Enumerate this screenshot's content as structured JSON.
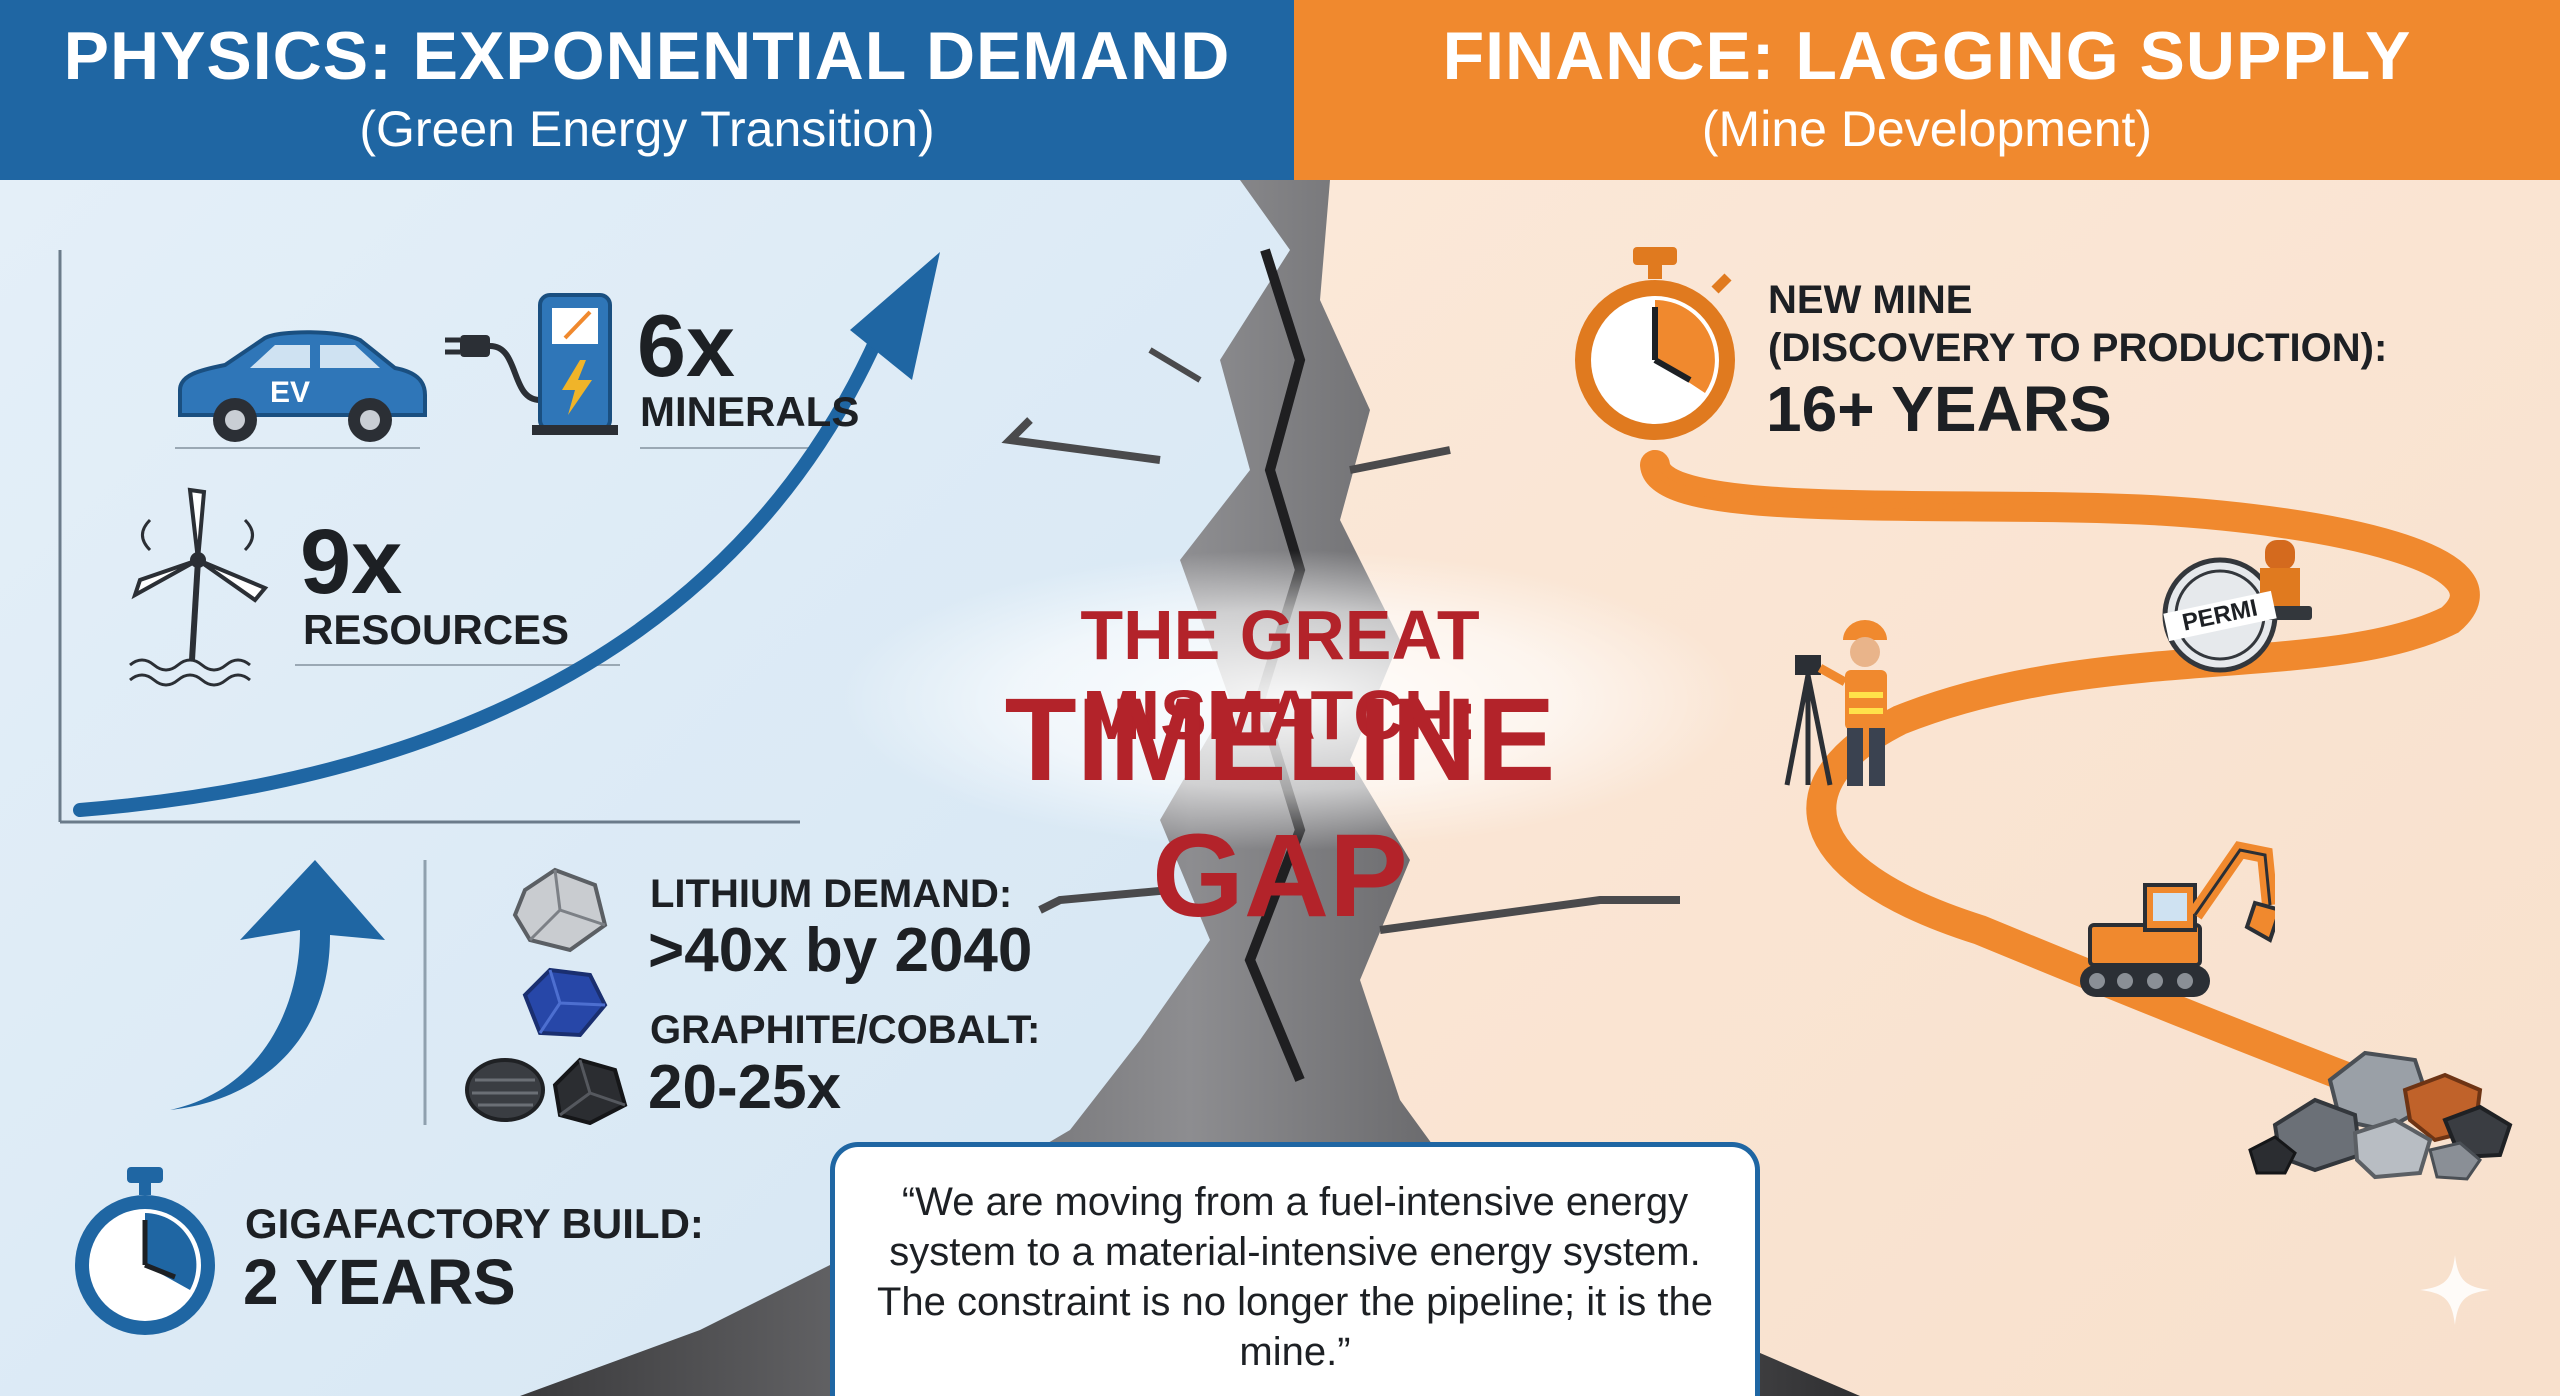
{
  "left_header": {
    "title": "PHYSICS: EXPONENTIAL DEMAND",
    "subtitle": "(Green Energy Transition)"
  },
  "right_header": {
    "title": "FINANCE: LAGGING SUPPLY",
    "subtitle": "(Mine Development)"
  },
  "center": {
    "title_line1": "THE GREAT MISMATCH:",
    "title_line2": "TIMELINE GAP"
  },
  "demand": {
    "ev_label": "EV",
    "minerals_value": "6x",
    "minerals_label": "MINERALS",
    "resources_value": "9x",
    "resources_label": "RESOURCES"
  },
  "lithium": {
    "label": "LITHIUM DEMAND:",
    "value": ">40x by 2040"
  },
  "graphite": {
    "label": "GRAPHITE/COBALT:",
    "value": "20-25x"
  },
  "gigafactory": {
    "label": "GIGAFACTORY BUILD:",
    "value": "2 YEARS"
  },
  "mine": {
    "line1": "NEW MINE",
    "line2": "(DISCOVERY TO PRODUCTION):",
    "value": "16+ YEARS"
  },
  "permit_label": "PERMI",
  "quote": "“We are moving from a fuel-intensive energy system to a material-intensive energy system. The constraint is no longer the pipeline; it is the mine.”",
  "colors": {
    "blue": "#1f66a3",
    "orange": "#f0892e",
    "red": "#b3232a",
    "dark": "#1d2024"
  },
  "icons": [
    "ev-car-icon",
    "charging-station-icon",
    "wind-turbine-icon",
    "stopwatch-icon",
    "surveyor-icon",
    "permit-stamp-icon",
    "excavator-icon",
    "ore-pile-icon",
    "sparkle-icon"
  ]
}
